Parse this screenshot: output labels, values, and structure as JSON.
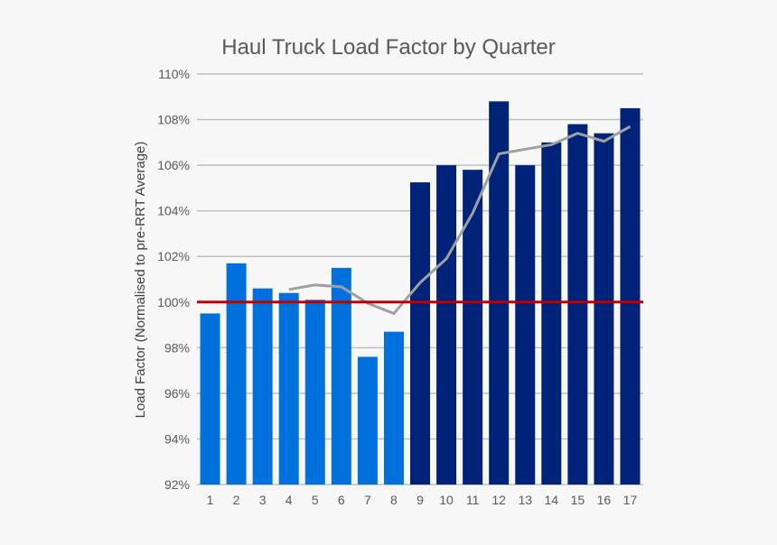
{
  "chart_data": {
    "type": "bar",
    "title": "Haul Truck Load Factor by Quarter",
    "xlabel": "",
    "ylabel": "Load Factor (Normalised to pre-RRT Average)",
    "ylim": [
      92,
      110
    ],
    "yticks": [
      "92%",
      "94%",
      "96%",
      "98%",
      "100%",
      "102%",
      "104%",
      "106%",
      "108%",
      "110%"
    ],
    "grid": true,
    "categories": [
      "1",
      "2",
      "3",
      "4",
      "5",
      "6",
      "7",
      "8",
      "9",
      "10",
      "11",
      "12",
      "13",
      "14",
      "15",
      "16",
      "17"
    ],
    "values": [
      99.5,
      101.7,
      100.6,
      100.4,
      100.1,
      101.5,
      97.6,
      98.7,
      105.25,
      106.0,
      105.8,
      108.8,
      106.0,
      107.0,
      107.8,
      107.4,
      108.5
    ],
    "bar_colors": {
      "pre": "#0070dd",
      "post": "#00237a",
      "pre_count": 8
    },
    "trend_line": {
      "color": "#a0a0a0",
      "x": [
        "4",
        "5",
        "6",
        "7",
        "8",
        "9",
        "10",
        "11",
        "12",
        "13",
        "14",
        "15",
        "16",
        "17"
      ],
      "values": [
        100.55,
        100.75,
        100.67,
        99.95,
        99.5,
        100.85,
        101.9,
        103.9,
        106.5,
        106.7,
        106.9,
        107.4,
        107.05,
        107.7
      ]
    },
    "reference_line": {
      "value": 100,
      "color": "#c00000"
    }
  }
}
